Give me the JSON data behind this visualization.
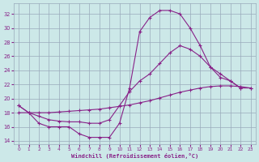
{
  "xlabel": "Windchill (Refroidissement éolien,°C)",
  "background_color": "#cce8e8",
  "grid_color": "#99aabb",
  "line_color": "#882288",
  "x_ticks": [
    0,
    1,
    2,
    3,
    4,
    5,
    6,
    7,
    8,
    9,
    10,
    11,
    12,
    13,
    14,
    15,
    16,
    17,
    18,
    19,
    20,
    21,
    22,
    23
  ],
  "ylim": [
    13.5,
    33.5
  ],
  "yticks": [
    14,
    16,
    18,
    20,
    22,
    24,
    26,
    28,
    30,
    32
  ],
  "xlim": [
    -0.5,
    23.5
  ],
  "line1_x": [
    0,
    1,
    2,
    3,
    4,
    5,
    6,
    7,
    8,
    9,
    10,
    11,
    12,
    13,
    14,
    15,
    16,
    17,
    18,
    19,
    20,
    21,
    22
  ],
  "line1_y": [
    19.0,
    18.0,
    16.5,
    16.0,
    16.0,
    16.0,
    15.0,
    14.5,
    14.5,
    14.5,
    16.5,
    21.5,
    29.5,
    31.5,
    32.5,
    32.5,
    32.0,
    30.0,
    27.5,
    24.5,
    23.0,
    22.5,
    21.5
  ],
  "line2_x": [
    0,
    1,
    2,
    3,
    4,
    5,
    6,
    7,
    8,
    9,
    10,
    11,
    12,
    13,
    14,
    15,
    16,
    17,
    18,
    19,
    20,
    21,
    22,
    23
  ],
  "line2_y": [
    19.0,
    18.0,
    17.5,
    17.0,
    16.8,
    16.7,
    16.7,
    16.5,
    16.5,
    17.0,
    19.0,
    21.0,
    22.5,
    23.5,
    25.0,
    26.5,
    27.5,
    27.0,
    26.0,
    24.5,
    23.5,
    22.5,
    21.5,
    21.5
  ],
  "line3_x": [
    0,
    1,
    2,
    3,
    4,
    5,
    6,
    7,
    8,
    9,
    10,
    11,
    12,
    13,
    14,
    15,
    16,
    17,
    18,
    19,
    20,
    21,
    22,
    23
  ],
  "line3_y": [
    18.0,
    18.0,
    18.0,
    18.0,
    18.1,
    18.2,
    18.3,
    18.4,
    18.5,
    18.7,
    18.9,
    19.1,
    19.4,
    19.7,
    20.1,
    20.5,
    20.9,
    21.2,
    21.5,
    21.7,
    21.8,
    21.8,
    21.7,
    21.5
  ]
}
